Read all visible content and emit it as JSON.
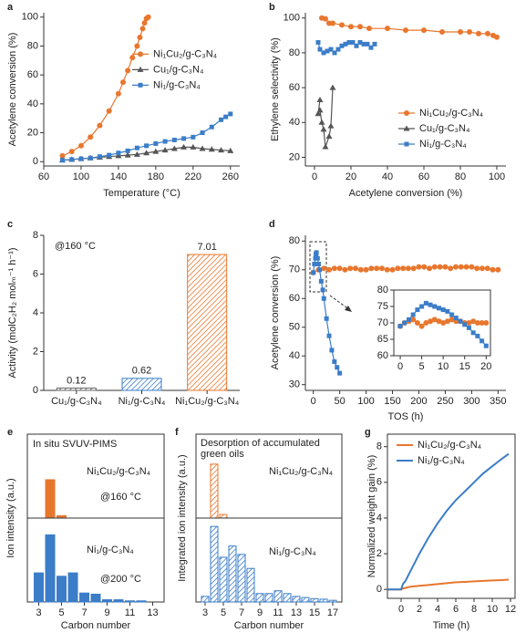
{
  "chart_data": [
    {
      "type": "line",
      "label": "a",
      "xlabel": "Temperature (°C)",
      "ylabel": "Acetylene conversion (%)",
      "xlim": [
        60,
        270
      ],
      "ylim": [
        -3,
        103
      ],
      "xticks": [
        60,
        100,
        140,
        180,
        220,
        260
      ],
      "yticks": [
        0,
        20,
        40,
        60,
        80,
        100
      ],
      "legend": "center right",
      "series": [
        {
          "name": "Ni₁Cu₂/g-C₃N₄",
          "color": "#e8772e",
          "marker": "circle",
          "x": [
            80,
            90,
            100,
            110,
            120,
            130,
            140,
            145,
            150,
            155,
            160,
            163,
            166,
            168,
            170,
            172
          ],
          "values": [
            4,
            7,
            11,
            17,
            25,
            35,
            47,
            55,
            63,
            72,
            80,
            86,
            92,
            96,
            99,
            100
          ]
        },
        {
          "name": "Cu₁/g-C₃N₄",
          "color": "#555555",
          "marker": "triangle",
          "x": [
            80,
            90,
            100,
            110,
            120,
            130,
            140,
            150,
            160,
            170,
            180,
            190,
            200,
            210,
            220,
            230,
            240,
            250,
            260
          ],
          "values": [
            1,
            1.5,
            2,
            2.5,
            3,
            3.5,
            4,
            4.5,
            5,
            6,
            7,
            8,
            9,
            10,
            10,
            9,
            8.5,
            8,
            7.5
          ]
        },
        {
          "name": "Ni₁/g-C₃N₄",
          "color": "#3b7dc8",
          "marker": "square",
          "x": [
            80,
            90,
            100,
            110,
            120,
            130,
            140,
            150,
            160,
            170,
            180,
            190,
            200,
            210,
            220,
            230,
            240,
            250,
            255,
            260
          ],
          "values": [
            1,
            1.5,
            2,
            2.5,
            3.5,
            4.5,
            6,
            7.5,
            9.5,
            11,
            12.5,
            14,
            15,
            16,
            17,
            20,
            24,
            29,
            31,
            33
          ]
        }
      ]
    },
    {
      "type": "line",
      "label": "b",
      "xlabel": "Acetylene conversion (%)",
      "ylabel": "Ethylene selectivity (%)",
      "xlim": [
        -5,
        105
      ],
      "ylim": [
        15,
        103
      ],
      "xticks": [
        0,
        20,
        40,
        60,
        80,
        100
      ],
      "yticks": [
        20,
        40,
        60,
        80,
        100
      ],
      "legend": "lower right",
      "series": [
        {
          "name": "Ni₁Cu₂/g-C₃N₄",
          "color": "#e8772e",
          "marker": "circle",
          "x": [
            4,
            6,
            8,
            10,
            15,
            20,
            25,
            30,
            40,
            50,
            60,
            70,
            80,
            85,
            90,
            95,
            98,
            100
          ],
          "values": [
            100,
            99.5,
            97,
            97,
            96,
            95,
            95,
            94,
            94,
            93,
            93,
            92,
            92,
            92,
            91,
            91,
            90,
            89
          ]
        },
        {
          "name": "Cu₁/g-C₃N₄",
          "color": "#555555",
          "marker": "triangle",
          "x": [
            3,
            2,
            3,
            4,
            5,
            6,
            8,
            9,
            10
          ],
          "values": [
            53,
            45,
            47,
            40,
            36,
            26,
            32,
            38,
            60
          ]
        },
        {
          "name": "Ni₁/g-C₃N₄",
          "color": "#3b7dc8",
          "marker": "square",
          "x": [
            2,
            3,
            5,
            7,
            9,
            11,
            13,
            15,
            17,
            19,
            21,
            23,
            25,
            27,
            29,
            31,
            33
          ],
          "values": [
            86,
            82,
            80,
            81,
            82,
            80,
            82,
            84,
            85,
            86,
            86,
            84,
            86,
            85,
            85,
            83,
            85
          ]
        }
      ]
    },
    {
      "type": "bar",
      "label": "c",
      "ylabel": "Activity (molC₂H₂ molₘ⁻¹ h⁻¹)",
      "annotations": [
        "@160 °C"
      ],
      "categories": [
        "Cu₁/g-C₃N₄",
        "Ni₁/g-C₃N₄",
        "Ni₁Cu₂/g-C₃N₄"
      ],
      "values": [
        0.12,
        0.62,
        7.01
      ],
      "colors": [
        "#666666",
        "#3b7dc8",
        "#e8772e"
      ],
      "hatch": true,
      "ylim": [
        0,
        8
      ],
      "yticks": [
        0,
        2,
        4,
        6,
        8
      ]
    },
    {
      "type": "line",
      "label": "d",
      "xlabel": "TOS (h)",
      "ylabel": "Acetylene conversion (%)",
      "xlim": [
        -15,
        365
      ],
      "ylim": [
        28,
        82
      ],
      "xticks": [
        0,
        50,
        100,
        150,
        200,
        250,
        300,
        350
      ],
      "yticks": [
        30,
        40,
        50,
        60,
        70,
        80
      ],
      "series": [
        {
          "color": "#e8772e",
          "marker": "circle",
          "x": [
            0,
            10,
            20,
            30,
            40,
            50,
            60,
            70,
            80,
            90,
            100,
            110,
            120,
            130,
            140,
            150,
            160,
            170,
            180,
            190,
            200,
            210,
            220,
            230,
            240,
            250,
            260,
            270,
            280,
            290,
            300,
            310,
            320,
            330,
            340,
            350
          ],
          "values": [
            69,
            70,
            70.5,
            70,
            70.5,
            70.5,
            70,
            70.5,
            70.5,
            70,
            70,
            70.5,
            70.5,
            70.5,
            70,
            70,
            70.5,
            70.5,
            70.5,
            70.5,
            71,
            71,
            70.5,
            71,
            71,
            71,
            70.5,
            71,
            71,
            71,
            71,
            70.5,
            70.5,
            70.5,
            70,
            70
          ]
        },
        {
          "color": "#3b7dc8",
          "marker": "square",
          "x": [
            0,
            2,
            4,
            5,
            6,
            8,
            10,
            12,
            15,
            18,
            20,
            25,
            30,
            35,
            40,
            45,
            50
          ],
          "values": [
            69,
            72,
            74,
            75.5,
            76,
            74,
            72,
            70,
            66,
            63,
            60,
            53,
            47,
            42,
            38,
            36,
            34
          ]
        }
      ]
    },
    {
      "type": "line",
      "xlim": [
        -1.5,
        21
      ],
      "ylim": [
        60,
        80
      ],
      "xticks": [
        0,
        5,
        10,
        15,
        20
      ],
      "yticks": [
        60,
        65,
        70,
        75,
        80
      ],
      "series": [
        {
          "color": "#e8772e",
          "marker": "circle",
          "x": [
            0,
            1,
            2,
            3,
            4,
            5,
            6,
            7,
            8,
            9,
            10,
            11,
            12,
            13,
            14,
            15,
            16,
            17,
            18,
            19,
            20
          ],
          "values": [
            69,
            70,
            70.5,
            71,
            70,
            69,
            70,
            70.5,
            71,
            70.5,
            70,
            70.5,
            71,
            70.5,
            70.5,
            70,
            70,
            70.5,
            70,
            70,
            70
          ]
        },
        {
          "color": "#3b7dc8",
          "marker": "square",
          "x": [
            0,
            1,
            2,
            3,
            4,
            5,
            6,
            7,
            8,
            9,
            10,
            11,
            12,
            13,
            14,
            15,
            16,
            17,
            18,
            19,
            20
          ],
          "values": [
            69,
            70,
            71,
            72.5,
            74,
            75,
            76,
            75.5,
            75,
            74.5,
            74,
            73.5,
            72.5,
            71.5,
            70.5,
            69.5,
            68.5,
            67,
            66,
            64.5,
            63
          ]
        }
      ]
    },
    {
      "type": "bar",
      "label": "e",
      "title": [
        "In situ SVUV-PIMS"
      ],
      "ylabel": "Ion intensity (a.u.)",
      "annotations": [
        "@160 °C"
      ],
      "xlim": [
        2,
        14
      ],
      "ylim": [
        0,
        3.5
      ],
      "series": [
        {
          "name": "Ni₁Cu₂/g-C₃N₄",
          "color": "#e8772e",
          "x": [
            4,
            5
          ],
          "values": [
            1.6,
            0.1
          ]
        }
      ]
    },
    {
      "type": "bar",
      "xlabel": "Carbon number",
      "annotations": [
        "@200 °C"
      ],
      "xlim": [
        2,
        14
      ],
      "ylim": [
        0,
        7.5
      ],
      "xticks": [
        3,
        5,
        7,
        9,
        11,
        13
      ],
      "series": [
        {
          "name": "Ni₁/g-C₃N₄",
          "color": "#3b7dc8",
          "x": [
            3,
            4,
            5,
            6,
            7,
            8,
            9,
            10,
            11,
            12
          ],
          "values": [
            2.6,
            6,
            2.3,
            2.6,
            0.8,
            0.7,
            0.2,
            0.2,
            0.1,
            0.1
          ]
        }
      ]
    },
    {
      "type": "bar",
      "label": "f",
      "title": [
        "Desorption of accumulated",
        "green oils"
      ],
      "ylabel": "Integrated ion intensity (a.u.)",
      "xlim": [
        2,
        18
      ],
      "ylim": [
        0,
        7
      ],
      "hatch": true,
      "series": [
        {
          "name": "Ni₁Cu₂/g-C₃N₄",
          "color": "#e8772e",
          "x": [
            4,
            5
          ],
          "values": [
            4.5,
            0.3
          ]
        }
      ]
    },
    {
      "type": "bar",
      "xlabel": "Carbon number",
      "xlim": [
        2,
        18
      ],
      "ylim": [
        0,
        15
      ],
      "xticks": [
        3,
        5,
        7,
        9,
        11,
        13,
        15,
        17
      ],
      "hatch": true,
      "series": [
        {
          "name": "Ni₁/g-C₃N₄",
          "color": "#3b7dc8",
          "x": [
            3,
            4,
            5,
            6,
            7,
            8,
            9,
            10,
            11,
            12,
            13,
            14,
            15,
            16,
            17
          ],
          "values": [
            1,
            13.5,
            8,
            10,
            8.5,
            6,
            1.5,
            1.5,
            2,
            1.5,
            1,
            0.8,
            0.6,
            0.5,
            0.3
          ]
        }
      ]
    },
    {
      "type": "line",
      "label": "g",
      "xlabel": "Time (h)",
      "ylabel": "Normalized weight gain (%)",
      "xlim": [
        -1.5,
        12.5
      ],
      "ylim": [
        -0.5,
        8.7
      ],
      "xticks": [
        0,
        2,
        4,
        6,
        8,
        10,
        12
      ],
      "yticks": [
        0,
        2,
        4,
        6,
        8
      ],
      "legend": "upper left",
      "series": [
        {
          "name": "Ni₁Cu₂/g-C₃N₄",
          "color": "#e8772e",
          "marker": "none",
          "x": [
            -1.5,
            0,
            0.2,
            1,
            2,
            3,
            4,
            5,
            6,
            7,
            8,
            9,
            10,
            11,
            11.8
          ],
          "values": [
            0,
            0,
            0.05,
            0.15,
            0.2,
            0.25,
            0.3,
            0.35,
            0.4,
            0.42,
            0.45,
            0.48,
            0.5,
            0.52,
            0.55
          ]
        },
        {
          "name": "Ni₁/g-C₃N₄",
          "color": "#3b7dc8",
          "marker": "none",
          "x": [
            -1.5,
            0,
            0.2,
            0.5,
            1,
            2,
            3,
            4,
            5,
            6,
            7,
            8,
            9,
            10,
            11,
            11.8
          ],
          "values": [
            0,
            0,
            0.3,
            0.5,
            1,
            2,
            2.9,
            3.7,
            4.4,
            5,
            5.5,
            6,
            6.5,
            6.9,
            7.3,
            7.6
          ]
        }
      ]
    }
  ]
}
